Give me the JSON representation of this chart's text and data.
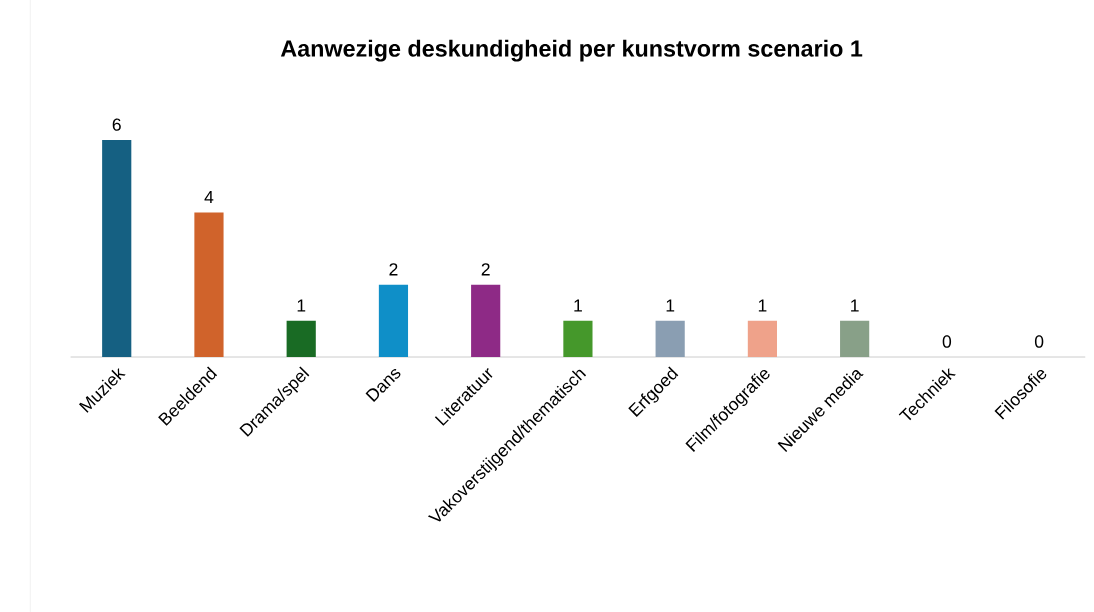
{
  "chart_data": {
    "type": "bar",
    "title": "Aanwezige deskundigheid per kunstvorm scenario 1",
    "categories": [
      "Muziek",
      "Beeldend",
      "Drama/spel",
      "Dans",
      "Literatuur",
      "Vakoverstijgend/thematisch",
      "Erfgoed",
      "Film/fotografie",
      "Nieuwe media",
      "Techniek",
      "Filosofie"
    ],
    "values": [
      6,
      4,
      1,
      2,
      2,
      1,
      1,
      1,
      1,
      0,
      0
    ],
    "colors": [
      "#156082",
      "#d0632b",
      "#196b24",
      "#0f8fc8",
      "#8e2a86",
      "#45982b",
      "#8a9eb2",
      "#efa28a",
      "#88a088",
      "#888888",
      "#888888"
    ],
    "data_labels": true
  }
}
